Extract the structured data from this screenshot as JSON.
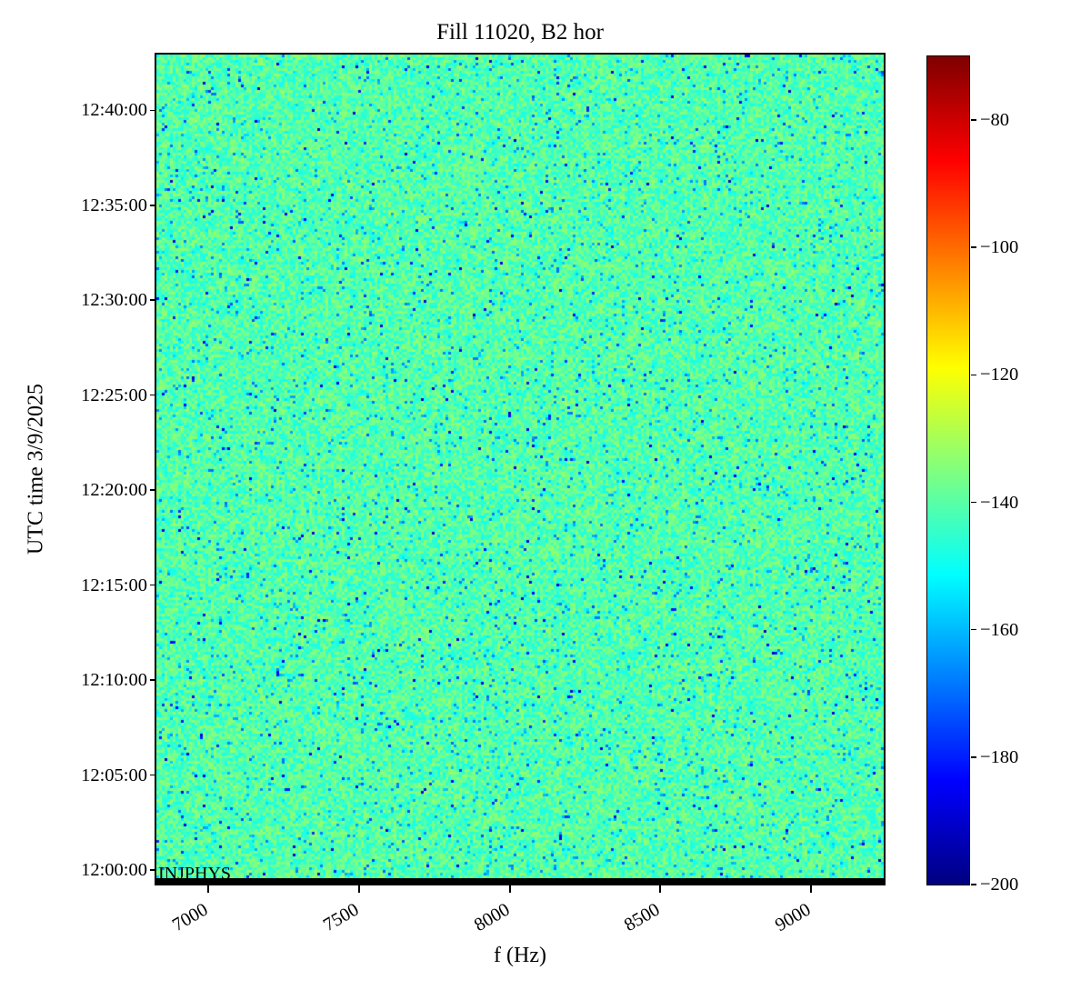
{
  "figure": {
    "title": "Fill 11020, B2 hor",
    "xlabel": "f (Hz)",
    "ylabel": "UTC time 3/9/2025",
    "annotation": "INJPHYS"
  },
  "colors": {
    "background": "#ffffff",
    "axis": "#000000",
    "text": "#000000",
    "marker_line": "#000000"
  },
  "chart_data": {
    "type": "heatmap",
    "title": "Fill 11020, B2 hor",
    "xlabel": "f (Hz)",
    "ylabel": "UTC time 3/9/2025",
    "annotation": {
      "label": "INJPHYS",
      "position": "bottom-left",
      "marker": "thick black horizontal line along bottom edge of plot"
    },
    "x_axis": {
      "unit": "Hz",
      "lim": [
        6828,
        9241
      ],
      "ticks": [
        7000,
        7500,
        8000,
        8500,
        9000
      ],
      "tick_labels": [
        "7000",
        "7500",
        "8000",
        "8500",
        "9000"
      ],
      "tick_rotation_deg": 30
    },
    "y_axis": {
      "unit": "UTC time",
      "date": "3/9/2025",
      "top_time": "12:42:56",
      "bottom_time": "11:59:17",
      "ticks": [
        "12:00:00",
        "12:05:00",
        "12:10:00",
        "12:15:00",
        "12:20:00",
        "12:25:00",
        "12:30:00",
        "12:35:00",
        "12:40:00"
      ]
    },
    "colorbar": {
      "colormap": "jet",
      "vmin": -200,
      "vmax": -70,
      "ticks": [
        -80,
        -100,
        -120,
        -140,
        -160,
        -180,
        -200
      ],
      "tick_labels": [
        "−80",
        "−100",
        "−120",
        "−140",
        "−160",
        "−180",
        "−200"
      ],
      "orientation": "vertical",
      "position": "right"
    },
    "values_summary": {
      "description": "uniform noise field (power spectral density, dB) with sparse low-value specks",
      "background_range_db": [
        -149,
        -132
      ],
      "sparse_dip_range_db": [
        -169,
        -149
      ],
      "rare_speck_range_db": [
        -190,
        -168
      ],
      "bottom_edge": "black beam-mode marker line"
    },
    "noise_model": {
      "seed": 7,
      "cols": 267,
      "rows": 304,
      "base_min": -149,
      "base_span": 17,
      "p_dip": 0.05,
      "dip_base": -149,
      "dip_span": 20,
      "p_speck": 0.01,
      "speck_base": -168,
      "speck_span": 22
    },
    "grid": false,
    "legend": false
  }
}
